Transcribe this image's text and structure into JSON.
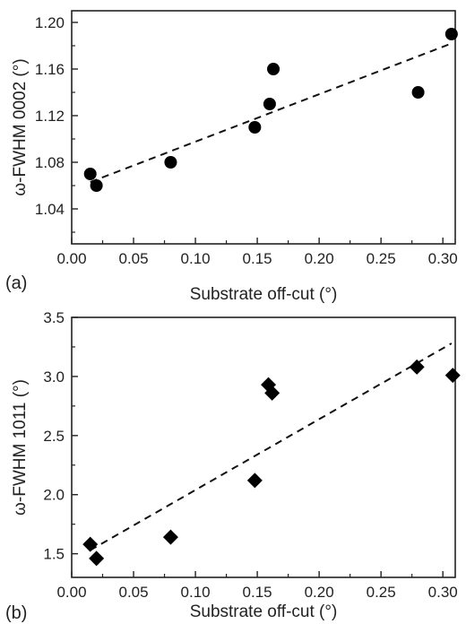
{
  "chart_data": [
    {
      "type": "scatter",
      "panel_label": "(a)",
      "xlabel": "Substrate off-cut (°)",
      "ylabel": "ω-FWHM 0002 (°)",
      "xlim": [
        0.0,
        0.31
      ],
      "ylim": [
        1.01,
        1.21
      ],
      "xticks": [
        "0.00",
        "0.05",
        "0.10",
        "0.15",
        "0.20",
        "0.25",
        "0.30"
      ],
      "xtick_values": [
        0.0,
        0.05,
        0.1,
        0.15,
        0.2,
        0.25,
        0.3
      ],
      "yticks": [
        "1.04",
        "1.08",
        "1.12",
        "1.16",
        "1.20"
      ],
      "ytick_values": [
        1.04,
        1.08,
        1.12,
        1.16,
        1.2
      ],
      "marker": "circle",
      "grid": false,
      "series": [
        {
          "x": [
            0.015,
            0.02,
            0.08,
            0.148,
            0.16,
            0.163,
            0.28,
            0.307
          ],
          "y": [
            1.07,
            1.06,
            1.08,
            1.11,
            1.13,
            1.16,
            1.14,
            1.19
          ]
        }
      ],
      "fit_line": {
        "style": "dashed",
        "x": [
          0.015,
          0.307
        ],
        "y": [
          1.063,
          1.182
        ]
      }
    },
    {
      "type": "scatter",
      "panel_label": "(b)",
      "xlabel": "Substrate off-cut (°)",
      "ylabel": "ω-FWHM 1011 (°)",
      "xlim": [
        0.0,
        0.31
      ],
      "ylim": [
        1.3,
        3.5
      ],
      "xticks": [
        "0.00",
        "0.05",
        "0.10",
        "0.15",
        "0.20",
        "0.25",
        "0.30"
      ],
      "xtick_values": [
        0.0,
        0.05,
        0.1,
        0.15,
        0.2,
        0.25,
        0.3
      ],
      "yticks": [
        "1.5",
        "2.0",
        "2.5",
        "3.0",
        "3.5"
      ],
      "ytick_values": [
        1.5,
        2.0,
        2.5,
        3.0,
        3.5
      ],
      "marker": "diamond",
      "grid": false,
      "series": [
        {
          "x": [
            0.015,
            0.02,
            0.08,
            0.148,
            0.159,
            0.162,
            0.279,
            0.308
          ],
          "y": [
            1.58,
            1.46,
            1.64,
            2.12,
            2.93,
            2.86,
            3.08,
            3.01
          ]
        }
      ],
      "fit_line": {
        "style": "dashed",
        "x": [
          0.015,
          0.307
        ],
        "y": [
          1.53,
          3.28
        ]
      }
    }
  ]
}
